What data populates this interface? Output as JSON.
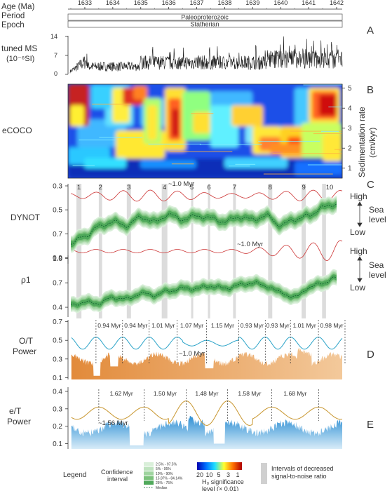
{
  "chart_data": {
    "type": "multi-panel",
    "header": {
      "age_label": "Age (Ma)",
      "period_label": "Period",
      "epoch_label": "Epoch",
      "period_value": "Paleoproterozoic",
      "epoch_value": "Statherian",
      "age_ticks": [
        "1633",
        "1634",
        "1635",
        "1636",
        "1637",
        "1638",
        "1639",
        "1640",
        "1641",
        "1642"
      ],
      "age_range": [
        1632.4,
        1642.2
      ]
    },
    "panel_letters": [
      "A",
      "B",
      "C",
      "D",
      "E"
    ],
    "ms": {
      "ylabel_line1": "tuned MS",
      "ylabel_line2": "(10⁻⁶SI)",
      "yticks": [
        "14",
        "7",
        "0"
      ],
      "ylim": [
        0,
        14
      ],
      "color": "#1a1a1a"
    },
    "ecoco": {
      "ylabel": "eCOCO",
      "right_label_line1": "Sedimentation rate",
      "right_label_line2": "(cm/kyr)",
      "right_ticks": [
        "5",
        "4",
        "3",
        "2",
        "1"
      ],
      "ylim": [
        0.5,
        5.2
      ]
    },
    "dynot": {
      "ylabel": "DYNOT",
      "yticks": [
        "0.3",
        "0.5",
        "0.7",
        "0.9"
      ],
      "ylim": [
        0.3,
        0.95
      ],
      "cycle_label": "~1.0 Myr",
      "cycle_label_lower": "~1.0 Myr",
      "numbers": [
        "1",
        "2",
        "3",
        "4",
        "5",
        "6",
        "7",
        "8",
        "9",
        "10"
      ],
      "sea_high": "High",
      "sea_low": "Low",
      "sea_word1": "Sea",
      "sea_word2": "level",
      "median": [
        [
          1632.5,
          0.78
        ],
        [
          1633.0,
          0.72
        ],
        [
          1633.5,
          0.64
        ],
        [
          1634.0,
          0.6
        ],
        [
          1634.5,
          0.63
        ],
        [
          1635.0,
          0.56
        ],
        [
          1635.5,
          0.6
        ],
        [
          1636.0,
          0.54
        ],
        [
          1636.5,
          0.58
        ],
        [
          1637.0,
          0.55
        ],
        [
          1637.5,
          0.57
        ],
        [
          1638.0,
          0.6
        ],
        [
          1638.5,
          0.56
        ],
        [
          1639.0,
          0.58
        ],
        [
          1639.5,
          0.55
        ],
        [
          1640.0,
          0.63
        ],
        [
          1640.5,
          0.58
        ],
        [
          1641.0,
          0.55
        ],
        [
          1641.5,
          0.48
        ],
        [
          1642.0,
          0.45
        ]
      ]
    },
    "rho1": {
      "ylabel": "ρ1",
      "yticks": [
        "1.0",
        "0.7",
        "0.4"
      ],
      "ylim": [
        0.28,
        1.02
      ],
      "median": [
        [
          1632.5,
          0.43
        ],
        [
          1633.0,
          0.46
        ],
        [
          1633.5,
          0.45
        ],
        [
          1634.0,
          0.52
        ],
        [
          1634.5,
          0.5
        ],
        [
          1635.0,
          0.57
        ],
        [
          1635.5,
          0.55
        ],
        [
          1636.0,
          0.6
        ],
        [
          1636.5,
          0.63
        ],
        [
          1637.0,
          0.63
        ],
        [
          1637.5,
          0.66
        ],
        [
          1638.0,
          0.63
        ],
        [
          1638.5,
          0.67
        ],
        [
          1639.0,
          0.7
        ],
        [
          1639.5,
          0.66
        ],
        [
          1640.0,
          0.58
        ],
        [
          1640.5,
          0.52
        ],
        [
          1641.0,
          0.64
        ],
        [
          1641.5,
          0.7
        ],
        [
          1642.0,
          0.76
        ]
      ]
    },
    "ot": {
      "ylabel_line1": "O/T",
      "ylabel_line2": "Power",
      "yticks": [
        "0.7",
        "0.5",
        "0.3",
        "0.1"
      ],
      "ylim": [
        0.08,
        0.72
      ],
      "cycle_label": "~1.0 Myr",
      "period_labels": [
        "0.94 Myr",
        "0.94 Myr",
        "1.01 Myr",
        "1.07 Myr",
        "1.15 Myr",
        "0.93 Myr",
        "0.93 Myr",
        "1.01 Myr",
        "0.98 Myr"
      ],
      "peak_ages": [
        1633.4,
        1634.35,
        1635.3,
        1636.3,
        1637.35,
        1638.5,
        1639.45,
        1640.35,
        1641.35,
        1642.3
      ],
      "curve_color": "#2aa3c8",
      "fill_color": "#e8a866"
    },
    "et": {
      "ylabel_line1": "e/T",
      "ylabel_line2": "Power",
      "yticks": [
        "0.4",
        "0.3",
        "0.2",
        "0.1"
      ],
      "ylim": [
        0.07,
        0.42
      ],
      "cycle_label": "~1.56 Myr",
      "period_labels": [
        "1.62 Myr",
        "1.50 Myr",
        "1.48 Myr",
        "1.58 Myr",
        "1.68 Myr"
      ],
      "peak_ages": [
        1633.5,
        1635.12,
        1636.62,
        1638.1,
        1639.68,
        1641.36
      ],
      "curve_color": "#c8962e",
      "fill_color": "#3f9ad6"
    },
    "bands": [
      [
        1632.7,
        1632.88
      ],
      [
        1633.5,
        1633.62
      ],
      [
        1634.5,
        1634.65
      ],
      [
        1635.75,
        1635.95
      ],
      [
        1636.8,
        1636.85
      ],
      [
        1637.4,
        1637.48
      ],
      [
        1638.3,
        1638.4
      ],
      [
        1639.55,
        1639.7
      ],
      [
        1640.75,
        1640.9
      ],
      [
        1641.48,
        1641.62
      ]
    ],
    "legend": {
      "title": "Legend",
      "ci_title_line1": "Confidence",
      "ci_title_line2": "interval",
      "ci_entries": [
        "2.5% - 97.5%",
        "5% - 95%",
        "10% - 90%",
        "15.87% - 84.14%",
        "25% - 75%"
      ],
      "median_label": "Median",
      "ci_colors": [
        "#d9efd9",
        "#bfe3bf",
        "#9fd49f",
        "#7cc27c",
        "#4fa95a"
      ],
      "scale_ticks": [
        "20",
        "10",
        "5",
        "3",
        "1"
      ],
      "scale_label_line1": "H₀ significance",
      "scale_label_line2": "level (× 0.01)",
      "band_label_line1": "Intervals of decreased",
      "band_label_line2": "signal-to-noise ratio"
    }
  }
}
